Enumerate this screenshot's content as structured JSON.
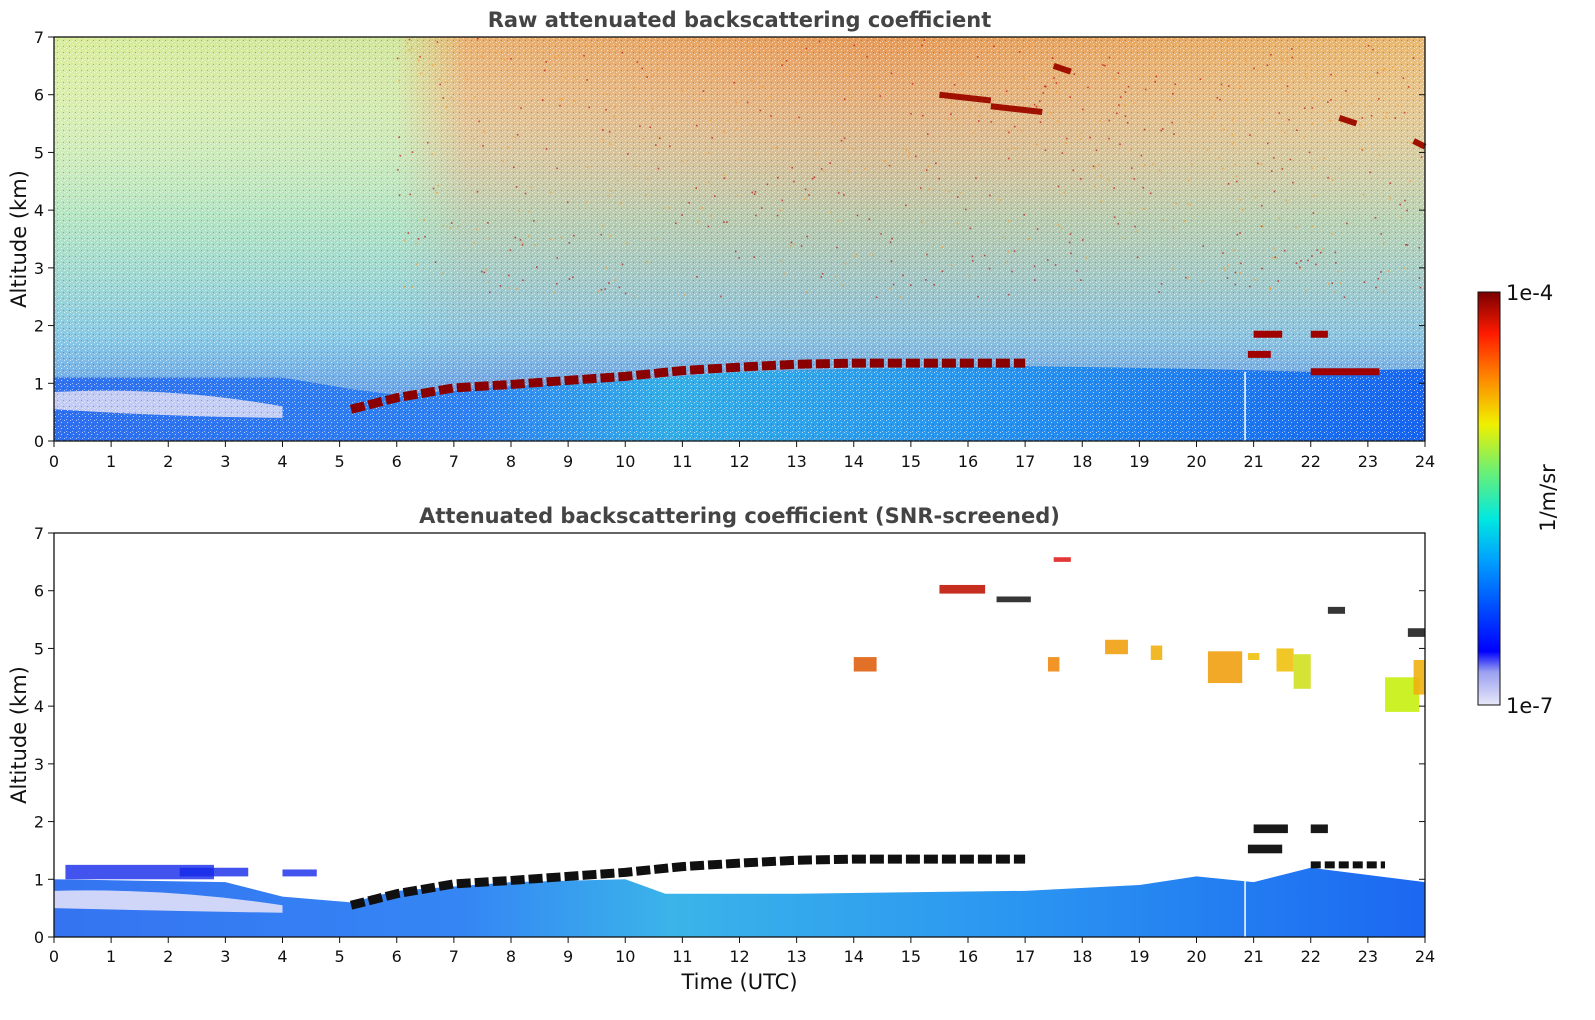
{
  "colorbar": {
    "max_label": "1e-4",
    "min_label": "1e-7",
    "unit_label": "1/m/sr",
    "max_value": 0.0001,
    "min_value": 1e-07,
    "scale": "log",
    "colormap": "jet"
  },
  "chart_data": [
    {
      "type": "heatmap",
      "title": "Raw attenuated backscattering coefficient",
      "xlabel": "",
      "ylabel": "Altitude (km)",
      "xlim": [
        0,
        24
      ],
      "ylim": [
        0,
        7
      ],
      "xticks": [
        0,
        1,
        2,
        3,
        4,
        5,
        6,
        7,
        8,
        9,
        10,
        11,
        12,
        13,
        14,
        15,
        16,
        17,
        18,
        19,
        20,
        21,
        22,
        23,
        24
      ],
      "yticks": [
        0,
        1,
        2,
        3,
        4,
        5,
        6,
        7
      ],
      "boundary_layer_cloud_km": [
        {
          "x": 5.2,
          "y": 0.55
        },
        {
          "x": 6,
          "y": 0.75
        },
        {
          "x": 7,
          "y": 0.92
        },
        {
          "x": 8,
          "y": 0.98
        },
        {
          "x": 9,
          "y": 1.05
        },
        {
          "x": 10,
          "y": 1.12
        },
        {
          "x": 11,
          "y": 1.22
        },
        {
          "x": 12,
          "y": 1.28
        },
        {
          "x": 13,
          "y": 1.33
        },
        {
          "x": 14,
          "y": 1.35
        },
        {
          "x": 15,
          "y": 1.35
        },
        {
          "x": 16,
          "y": 1.35
        },
        {
          "x": 17,
          "y": 1.35
        }
      ]
    },
    {
      "type": "heatmap",
      "title": "Attenuated backscattering coefficient (SNR-screened)",
      "xlabel": "Time (UTC)",
      "ylabel": "Altitude (km)",
      "xlim": [
        0,
        24
      ],
      "ylim": [
        0,
        7
      ],
      "xticks": [
        0,
        1,
        2,
        3,
        4,
        5,
        6,
        7,
        8,
        9,
        10,
        11,
        12,
        13,
        14,
        15,
        16,
        17,
        18,
        19,
        20,
        21,
        22,
        23,
        24
      ],
      "yticks": [
        0,
        1,
        2,
        3,
        4,
        5,
        6,
        7
      ]
    }
  ]
}
